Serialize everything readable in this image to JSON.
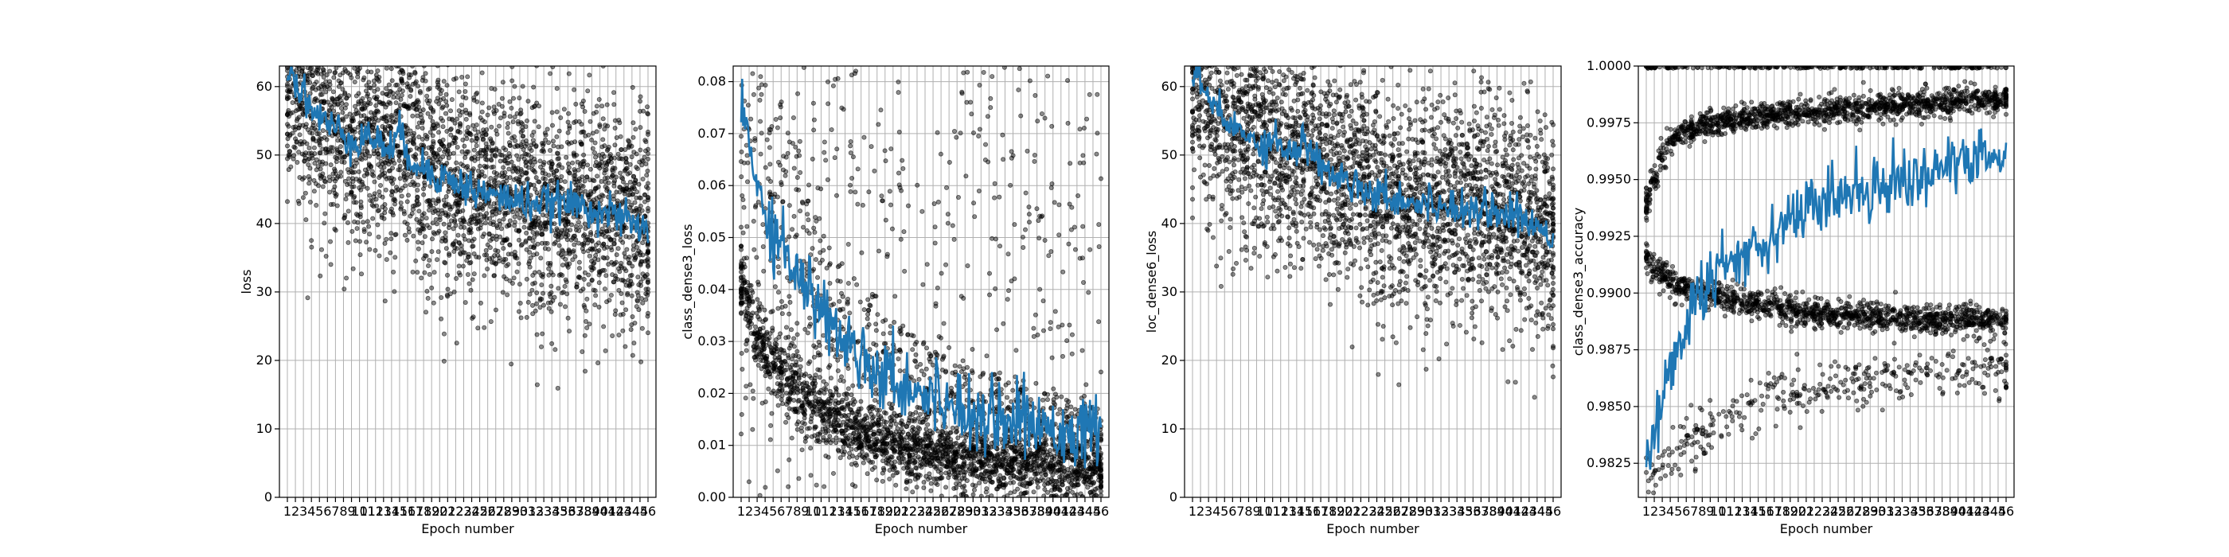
{
  "chart_data": [
    {
      "type": "scatter",
      "xlabel": "Epoch number",
      "ylabel": "loss",
      "ylim": [
        0,
        63
      ],
      "yticks": [
        0,
        10,
        20,
        30,
        40,
        50,
        60
      ],
      "ytick_labels": [
        "0",
        "10",
        "20",
        "30",
        "40",
        "50",
        "60"
      ],
      "epochs": 46,
      "grid": true,
      "series": [
        {
          "name": "",
          "color": "#1f77b4",
          "values": [
            62.5,
            61,
            59,
            57,
            55.5,
            54.5,
            53.8,
            53.2,
            52.5,
            52,
            53,
            52,
            51.5,
            51,
            53,
            50.5,
            49,
            48,
            47.5,
            47,
            46.5,
            46,
            45.5,
            45,
            44.5,
            44.2,
            44,
            43.8,
            43.5,
            43.2,
            43.2,
            43,
            42.9,
            42.8,
            43,
            42.8,
            42.7,
            42.5,
            42.2,
            42,
            41.5,
            41,
            40.5,
            40,
            39.5,
            38.5
          ]
        }
      ],
      "scatter_spread": 8
    },
    {
      "type": "scatter",
      "xlabel": "Epoch number",
      "ylabel": "class_dense3_loss",
      "ylim": [
        0,
        0.083
      ],
      "yticks": [
        0,
        0.01,
        0.02,
        0.03,
        0.04,
        0.05,
        0.06,
        0.07,
        0.08
      ],
      "ytick_labels": [
        "0.00",
        "0.01",
        "0.02",
        "0.03",
        "0.04",
        "0.05",
        "0.06",
        "0.07",
        "0.08"
      ],
      "epochs": 46,
      "grid": true,
      "series": [
        {
          "name": "",
          "color": "#1f77b4",
          "values": [
            0.075,
            0.068,
            0.06,
            0.056,
            0.052,
            0.049,
            0.046,
            0.044,
            0.041,
            0.038,
            0.036,
            0.034,
            0.032,
            0.03,
            0.029,
            0.028,
            0.026,
            0.025,
            0.024,
            0.023,
            0.022,
            0.021,
            0.021,
            0.02,
            0.019,
            0.019,
            0.018,
            0.018,
            0.017,
            0.017,
            0.016,
            0.016,
            0.016,
            0.015,
            0.015,
            0.015,
            0.014,
            0.014,
            0.014,
            0.014,
            0.013,
            0.013,
            0.013,
            0.013,
            0.012,
            0.012
          ]
        }
      ],
      "lower_band": [
        0.04,
        0.035,
        0.031,
        0.028,
        0.026,
        0.024,
        0.022,
        0.021,
        0.019,
        0.018,
        0.017,
        0.016,
        0.015,
        0.014,
        0.013,
        0.012,
        0.012,
        0.011,
        0.011,
        0.01,
        0.01,
        0.009,
        0.009,
        0.009,
        0.008,
        0.008,
        0.008,
        0.007,
        0.007,
        0.007,
        0.007,
        0.007,
        0.006,
        0.006,
        0.006,
        0.006,
        0.006,
        0.006,
        0.006,
        0.005,
        0.005,
        0.005,
        0.005,
        0.005,
        0.005,
        0.005
      ]
    },
    {
      "type": "scatter",
      "xlabel": "Epoch number",
      "ylabel": "loc_dense6_loss",
      "ylim": [
        0,
        63
      ],
      "yticks": [
        0,
        10,
        20,
        30,
        40,
        50,
        60
      ],
      "ytick_labels": [
        "0",
        "10",
        "20",
        "30",
        "40",
        "50",
        "60"
      ],
      "epochs": 46,
      "grid": true,
      "series": [
        {
          "name": "",
          "color": "#1f77b4",
          "values": [
            62,
            60.5,
            58.5,
            56.5,
            55,
            54,
            53.3,
            52.7,
            52,
            51.5,
            52.5,
            51.5,
            51,
            50.5,
            52,
            50,
            48.5,
            47.5,
            47,
            46.5,
            46,
            45.5,
            45,
            44.5,
            44,
            43.8,
            43.5,
            43.3,
            43,
            42.8,
            42.8,
            42.6,
            42.5,
            42.4,
            42.6,
            42.4,
            42.3,
            42.1,
            41.8,
            41.6,
            41.1,
            40.6,
            40.1,
            39.6,
            39.1,
            38.1
          ]
        }
      ],
      "scatter_spread": 8
    },
    {
      "type": "scatter",
      "xlabel": "Epoch number",
      "ylabel": "class_dense3_accuracy",
      "ylim": [
        0.981,
        1.0
      ],
      "yticks": [
        0.9825,
        0.985,
        0.9875,
        0.99,
        0.9925,
        0.995,
        0.9975,
        1.0
      ],
      "ytick_labels": [
        "0.9825",
        "0.9850",
        "0.9875",
        "0.9900",
        "0.9925",
        "0.9950",
        "0.9975",
        "1.0000"
      ],
      "epochs": 46,
      "grid": true,
      "series": [
        {
          "name": "",
          "color": "#1f77b4",
          "values": [
            0.9825,
            0.984,
            0.9855,
            0.9865,
            0.9875,
            0.9885,
            0.9895,
            0.99,
            0.9905,
            0.991,
            0.9912,
            0.9915,
            0.9918,
            0.992,
            0.9922,
            0.9925,
            0.9928,
            0.993,
            0.9932,
            0.9935,
            0.9937,
            0.9938,
            0.994,
            0.9941,
            0.9943,
            0.9944,
            0.9945,
            0.9946,
            0.9947,
            0.9948,
            0.9949,
            0.995,
            0.995,
            0.9951,
            0.9952,
            0.9953,
            0.9954,
            0.9955,
            0.9956,
            0.9956,
            0.9957,
            0.9958,
            0.9959,
            0.996,
            0.996,
            0.9962
          ]
        }
      ],
      "band_upper": [
        0.994,
        0.995,
        0.996,
        0.9965,
        0.997,
        0.9972,
        0.9973,
        0.9974,
        0.9975,
        0.9975,
        0.9976,
        0.9976,
        0.9977,
        0.9977,
        0.9978,
        0.9978,
        0.9978,
        0.9979,
        0.9979,
        0.998,
        0.998,
        0.998,
        0.998,
        0.9981,
        0.9981,
        0.9981,
        0.9981,
        0.9982,
        0.9982,
        0.9982,
        0.9982,
        0.9983,
        0.9983,
        0.9983,
        0.9983,
        0.9984,
        0.9984,
        0.9984,
        0.9984,
        0.9985,
        0.9985,
        0.9985,
        0.9985,
        0.9985,
        0.9986,
        0.9986
      ],
      "band_mid": [
        0.9915,
        0.991,
        0.9908,
        0.9905,
        0.9903,
        0.9902,
        0.9901,
        0.99,
        0.99,
        0.9899,
        0.9898,
        0.9897,
        0.9896,
        0.9895,
        0.9895,
        0.9894,
        0.9894,
        0.9893,
        0.9893,
        0.9892,
        0.9892,
        0.9891,
        0.9891,
        0.9891,
        0.989,
        0.989,
        0.989,
        0.989,
        0.9889,
        0.9889,
        0.9889,
        0.9889,
        0.9889,
        0.9889,
        0.9888,
        0.9888,
        0.9888,
        0.9888,
        0.9888,
        0.9888,
        0.9888,
        0.9888,
        0.9888,
        0.9888,
        0.9887,
        0.9887
      ],
      "band_low": [
        0.982,
        0.9822,
        0.9825,
        0.9828,
        0.983,
        0.9833,
        0.9836,
        0.9838,
        0.984,
        0.9842,
        0.9844,
        0.9846,
        0.9848,
        0.985,
        0.9851,
        0.9852,
        0.9853,
        0.9854,
        0.9855,
        0.9856,
        0.9857,
        0.9858,
        0.9858,
        0.9859,
        0.986,
        0.986,
        0.9861,
        0.9861,
        0.9862,
        0.9862,
        0.9863,
        0.9863,
        0.9863,
        0.9864,
        0.9864,
        0.9864,
        0.9865,
        0.9865,
        0.9865,
        0.9866,
        0.9866,
        0.9866,
        0.9866,
        0.9867,
        0.9867,
        0.9867
      ]
    }
  ]
}
